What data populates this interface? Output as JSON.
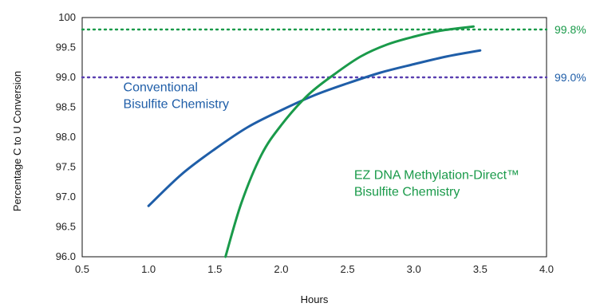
{
  "chart_data": {
    "type": "line",
    "xlabel": "Hours",
    "ylabel": "Percentage C to U Conversion",
    "xlim": [
      0.5,
      4.0
    ],
    "ylim": [
      96.0,
      100
    ],
    "x_ticks": [
      "0.5",
      "1.0",
      "1.5",
      "2.0",
      "2.5",
      "3.0",
      "3.5",
      "4.0"
    ],
    "y_ticks": [
      "96.0",
      "96.5",
      "97.0",
      "97.5",
      "98.0",
      "98.5",
      "99.0",
      "99.5",
      "100"
    ],
    "grid": false,
    "series": [
      {
        "name_lines": [
          "Conventional",
          "Bisulfite Chemistry"
        ],
        "color": "#1f5ea8",
        "x": [
          1.0,
          1.25,
          1.5,
          1.75,
          2.0,
          2.25,
          2.5,
          2.75,
          3.0,
          3.25,
          3.5
        ],
        "y": [
          96.85,
          97.38,
          97.8,
          98.17,
          98.45,
          98.7,
          98.9,
          99.08,
          99.22,
          99.35,
          99.45
        ]
      },
      {
        "name_lines": [
          "EZ DNA Methylation-Direct™",
          "Bisulfite Chemistry"
        ],
        "color": "#1a9a4a",
        "x": [
          1.58,
          1.7,
          1.85,
          2.0,
          2.2,
          2.4,
          2.6,
          2.8,
          3.0,
          3.2,
          3.45
        ],
        "y": [
          96.0,
          96.9,
          97.7,
          98.2,
          98.7,
          99.05,
          99.35,
          99.55,
          99.68,
          99.78,
          99.85
        ]
      }
    ],
    "reference_lines": [
      {
        "y": 99.8,
        "label": "99.8%",
        "color": "#1a9a4a",
        "style": "dotted"
      },
      {
        "y": 99.0,
        "label": "99.0%",
        "color": "#5a3fb0",
        "label_color": "#1f5ea8",
        "style": "dotted"
      }
    ]
  }
}
